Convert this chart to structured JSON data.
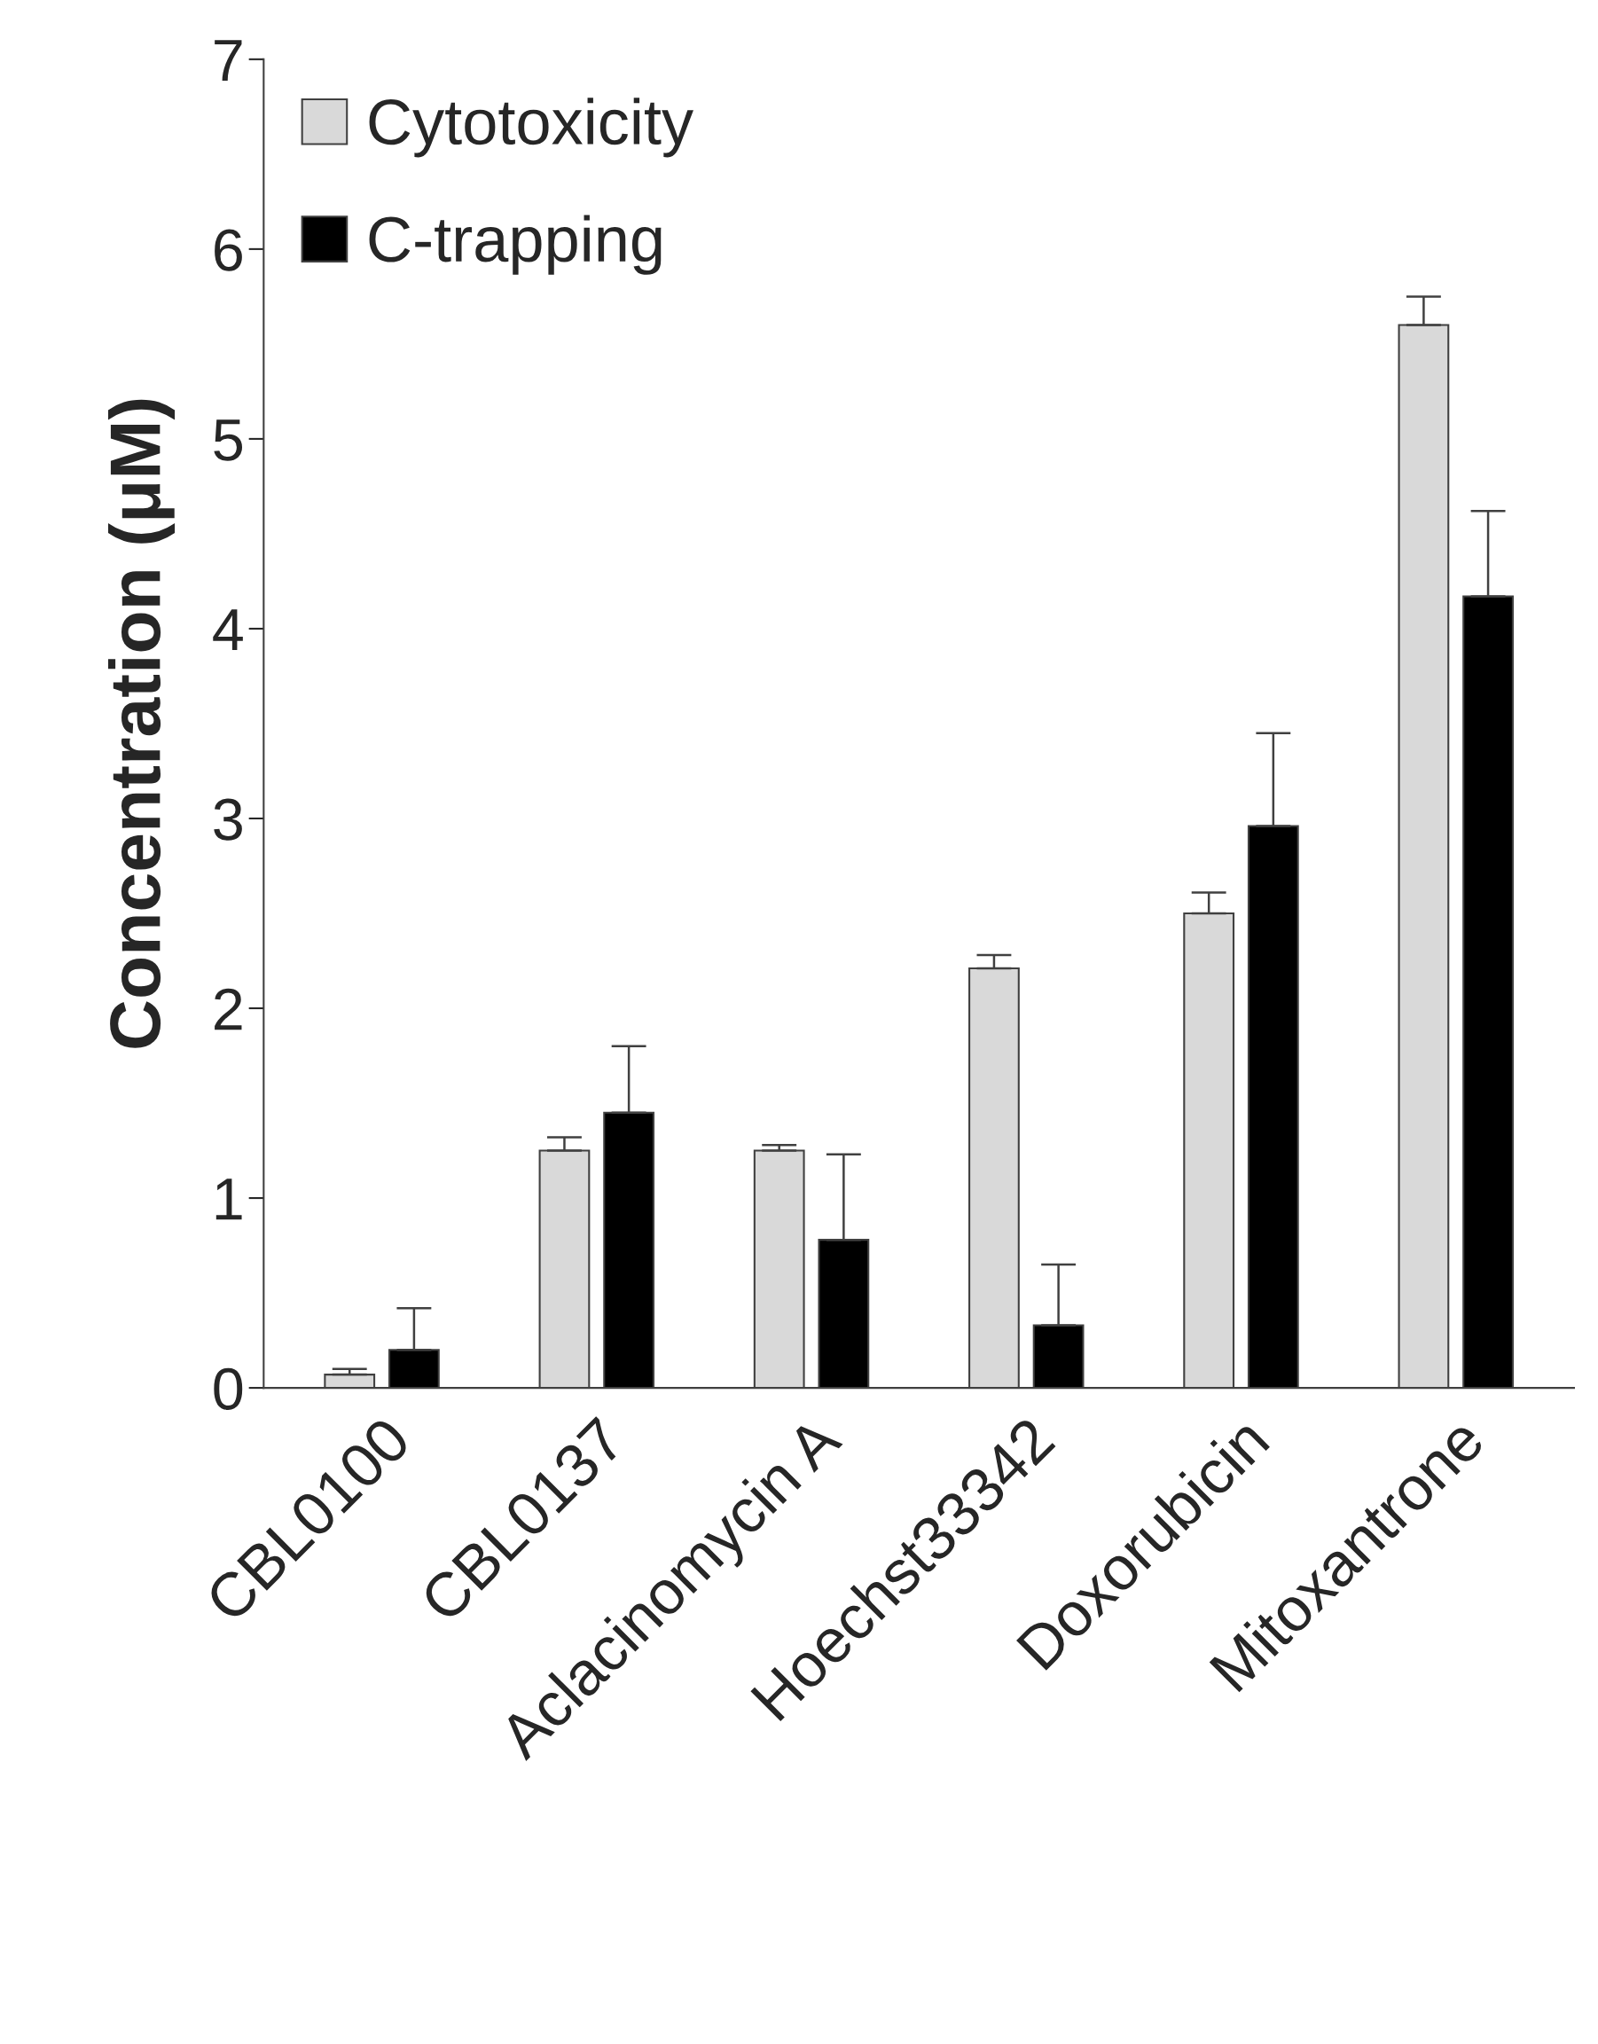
{
  "chart_data": {
    "type": "bar",
    "ylabel": "Concentration (μM)",
    "categories": [
      "CBL0100",
      "CBL0137",
      "Aclacinomycin A",
      "Hoechst33342",
      "Doxorubicin",
      "Mitoxantrone"
    ],
    "series": [
      {
        "name": "Cytotoxicity",
        "color": "#d9d9d9",
        "values": [
          0.07,
          1.25,
          1.25,
          2.21,
          2.5,
          5.6
        ],
        "errors": [
          [
            0.07,
            0.1
          ],
          [
            1.25,
            1.32
          ],
          [
            1.25,
            1.28
          ],
          [
            2.21,
            2.28
          ],
          [
            2.5,
            2.61
          ],
          [
            5.6,
            5.75
          ]
        ]
      },
      {
        "name": "C-trapping",
        "color": "#000000",
        "values": [
          0.2,
          1.45,
          0.78,
          0.33,
          2.96,
          4.17
        ],
        "errors": [
          [
            0.2,
            0.42
          ],
          [
            1.45,
            1.8
          ],
          [
            0.78,
            1.23
          ],
          [
            0.33,
            0.65
          ],
          [
            2.96,
            3.45
          ],
          [
            4.17,
            4.62
          ]
        ]
      }
    ],
    "ylim": [
      0,
      7
    ],
    "yticks": [
      0,
      1,
      2,
      3,
      4,
      5,
      6,
      7
    ],
    "grid": false,
    "legend": "top left"
  }
}
